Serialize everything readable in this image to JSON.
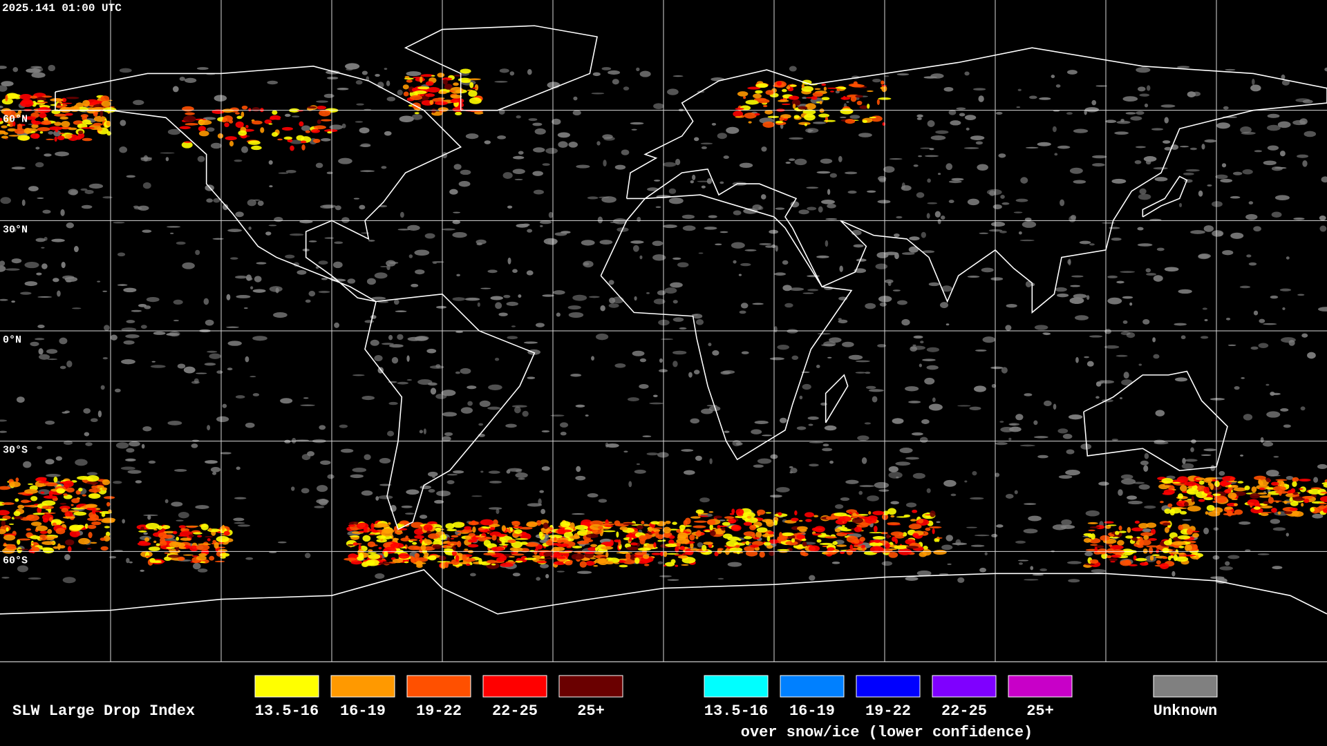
{
  "header": {
    "timestamp": "2025.141 01:00 UTC"
  },
  "map": {
    "latitude_labels": [
      "60°N",
      "30°N",
      "0°N",
      "30°S",
      "60°S"
    ]
  },
  "legend": {
    "title": "SLW Large Drop Index",
    "items": [
      {
        "label": "13.5-16",
        "color": "#ffff00"
      },
      {
        "label": "16-19",
        "color": "#ff9900"
      },
      {
        "label": "19-22",
        "color": "#ff5000"
      },
      {
        "label": "22-25",
        "color": "#ff0000"
      },
      {
        "label": "25+",
        "color": "#6a0000"
      }
    ],
    "snow_items": [
      {
        "label": "13.5-16",
        "color": "#00ffff"
      },
      {
        "label": "16-19",
        "color": "#0080ff"
      },
      {
        "label": "19-22",
        "color": "#0000ff"
      },
      {
        "label": "22-25",
        "color": "#7f00ff"
      },
      {
        "label": "25+",
        "color": "#c800c8"
      }
    ],
    "snow_caption": "over snow/ice (lower confidence)",
    "unknown": {
      "label": "Unknown",
      "color": "#808080"
    }
  }
}
